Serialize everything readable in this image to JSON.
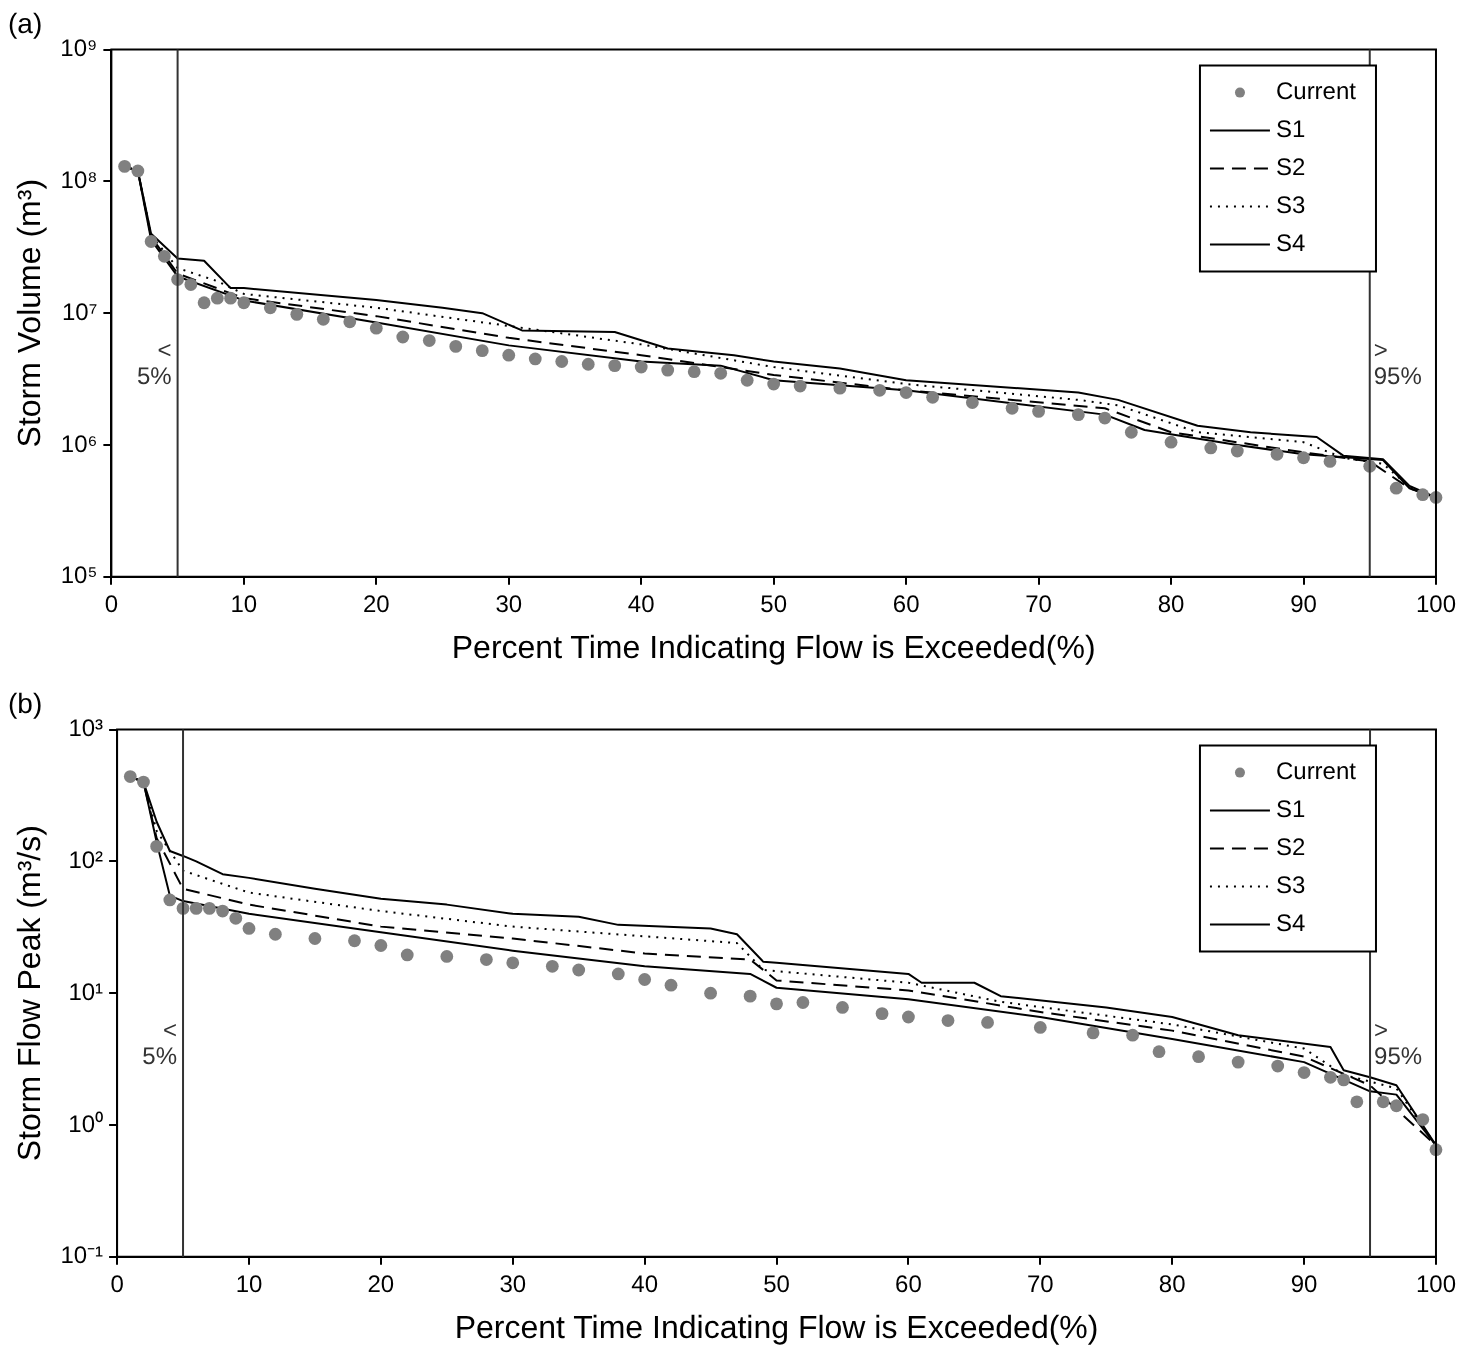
{
  "chart_data": [
    {
      "type": "line",
      "title": "(a)",
      "xlabel": "Percent Time Indicating Flow is Exceeded(%)",
      "ylabel": "Storm Volume (m³)",
      "xlim": [
        0,
        100
      ],
      "xticks": [
        0,
        10,
        20,
        30,
        40,
        50,
        60,
        70,
        80,
        90,
        100
      ],
      "ylim": [
        100000,
        1000000000
      ],
      "yticks": [
        {
          "value": 100000,
          "label": "10⁵"
        },
        {
          "value": 1000000,
          "label": "10⁶"
        },
        {
          "value": 10000000,
          "label": "10⁷"
        },
        {
          "value": 100000000,
          "label": "10⁸"
        },
        {
          "value": 1000000000,
          "label": "10⁹"
        }
      ],
      "log": "y",
      "grid": false,
      "legend": "top right",
      "ref_lines": [
        {
          "axis": "x",
          "value": 5,
          "label": "< 5%"
        },
        {
          "axis": "x",
          "value": 95,
          "label": "> 95%"
        }
      ],
      "series": [
        {
          "name": "Current",
          "type": "scatter",
          "marker": "circle",
          "color": "#808080",
          "x": [
            1,
            2,
            3,
            4,
            5,
            6,
            7,
            8,
            9,
            10,
            12,
            14,
            16,
            18,
            20,
            22,
            24,
            26,
            28,
            30,
            32,
            34,
            36,
            38,
            40,
            42,
            44,
            46,
            48,
            50,
            52,
            55,
            58,
            60,
            62,
            65,
            68,
            70,
            73,
            75,
            77,
            80,
            83,
            85,
            88,
            90,
            92,
            95,
            97,
            99,
            100
          ],
          "values": [
            130000000.0,
            120000000.0,
            35000000.0,
            27000000.0,
            18000000.0,
            16500000.0,
            12000000.0,
            13000000.0,
            13000000.0,
            12000000.0,
            11000000.0,
            9800000.0,
            9000000.0,
            8600000.0,
            7700000.0,
            6600000.0,
            6200000.0,
            5600000.0,
            5200000.0,
            4800000.0,
            4500000.0,
            4300000.0,
            4100000.0,
            4000000.0,
            3900000.0,
            3700000.0,
            3600000.0,
            3500000.0,
            3100000.0,
            2900000.0,
            2800000.0,
            2700000.0,
            2600000.0,
            2500000.0,
            2300000.0,
            2100000.0,
            1900000.0,
            1800000.0,
            1700000.0,
            1600000.0,
            1250000.0,
            1050000.0,
            950000.0,
            900000.0,
            850000.0,
            800000.0,
            750000.0,
            690000.0,
            470000.0,
            420000.0,
            400000.0
          ]
        },
        {
          "name": "S1",
          "type": "line",
          "marker": "none",
          "line_style": "solid",
          "color": "#000000",
          "x": [
            1,
            2,
            3,
            5,
            7,
            9,
            10,
            20,
            25,
            28,
            31,
            38,
            42,
            47,
            50,
            55,
            60,
            73,
            76,
            82,
            86,
            91,
            93,
            96,
            98,
            100
          ],
          "values": [
            130000000.0,
            120000000.0,
            40000000.0,
            26000000.0,
            25000000.0,
            15500000.0,
            15500000.0,
            12600000.0,
            11000000.0,
            10000000.0,
            7400000.0,
            7200000.0,
            5400000.0,
            4800000.0,
            4300000.0,
            3800000.0,
            3100000.0,
            2500000.0,
            2200000.0,
            1400000.0,
            1250000.0,
            1150000.0,
            830000.0,
            780000.0,
            490000.0,
            400000.0
          ]
        },
        {
          "name": "S2",
          "type": "line",
          "marker": "none",
          "line_style": "dashed",
          "color": "#000000",
          "x": [
            1,
            2,
            3,
            5,
            10,
            20,
            30,
            40,
            50,
            60,
            75,
            80,
            90,
            95,
            98,
            100
          ],
          "values": [
            130000000.0,
            120000000.0,
            38000000.0,
            20000000.0,
            13000000.0,
            9500000.0,
            6500000.0,
            4800000.0,
            3400000.0,
            2600000.0,
            1900000.0,
            1250000.0,
            880000.0,
            750000.0,
            470000.0,
            400000.0
          ]
        },
        {
          "name": "S3",
          "type": "line",
          "marker": "none",
          "line_style": "dotted",
          "color": "#000000",
          "x": [
            1,
            2,
            3,
            5,
            8,
            10,
            20,
            30,
            40,
            50,
            60,
            73,
            76,
            82,
            90,
            93,
            96,
            98,
            100
          ],
          "values": [
            130000000.0,
            120000000.0,
            39000000.0,
            22000000.0,
            17500000.0,
            14000000.0,
            11000000.0,
            8000000.0,
            5800000.0,
            3900000.0,
            2900000.0,
            2200000.0,
            2000000.0,
            1250000.0,
            1050000.0,
            800000.0,
            720000.0,
            480000.0,
            400000.0
          ]
        },
        {
          "name": "S4",
          "type": "line",
          "marker": "none",
          "line_style": "solid",
          "color": "#000000",
          "x": [
            1,
            2,
            3,
            5,
            10,
            20,
            30,
            40,
            46,
            50,
            60,
            75,
            78,
            85,
            90,
            96,
            98,
            100
          ],
          "values": [
            130000000.0,
            120000000.0,
            36000000.0,
            19000000.0,
            12500000.0,
            8500000.0,
            5700000.0,
            4300000.0,
            4000000.0,
            3100000.0,
            2600000.0,
            1700000.0,
            1300000.0,
            1000000.0,
            850000.0,
            770000.0,
            470000.0,
            400000.0
          ]
        }
      ]
    },
    {
      "type": "line",
      "title": "(b)",
      "xlabel": "Percent Time Indicating Flow is Exceeded(%)",
      "ylabel": "Storm Flow Peak (m³/s)",
      "xlim": [
        0,
        100
      ],
      "xticks": [
        0,
        10,
        20,
        30,
        40,
        50,
        60,
        70,
        80,
        90,
        100
      ],
      "ylim": [
        0.1,
        1000
      ],
      "yticks": [
        {
          "value": 0.1,
          "label": "10⁻¹"
        },
        {
          "value": 1,
          "label": "10⁰"
        },
        {
          "value": 10,
          "label": "10¹"
        },
        {
          "value": 100,
          "label": "10²"
        },
        {
          "value": 1000,
          "label": "10³"
        }
      ],
      "log": "y",
      "grid": false,
      "legend": "top right",
      "ref_lines": [
        {
          "axis": "x",
          "value": 5,
          "label": "< 5%"
        },
        {
          "axis": "x",
          "value": 95,
          "label": "> 95%"
        }
      ],
      "series": [
        {
          "name": "Current",
          "type": "scatter",
          "marker": "circle",
          "color": "#808080",
          "x": [
            1,
            2,
            3,
            4,
            5,
            6,
            7,
            8,
            9,
            10,
            12,
            15,
            18,
            20,
            22,
            25,
            28,
            30,
            33,
            35,
            38,
            40,
            42,
            45,
            48,
            50,
            52,
            55,
            58,
            60,
            63,
            66,
            70,
            74,
            77,
            79,
            82,
            85,
            88,
            90,
            92,
            93,
            94,
            96,
            97,
            99,
            100
          ],
          "values": [
            440,
            400,
            130,
            51,
            44,
            44,
            44,
            42,
            37,
            31,
            28,
            26,
            25,
            23,
            19.5,
            19,
            18,
            17,
            16,
            15,
            14,
            12.7,
            11.5,
            10,
            9.5,
            8.3,
            8.5,
            7.8,
            7,
            6.6,
            6.2,
            6,
            5.5,
            5,
            4.8,
            3.6,
            3.3,
            3,
            2.8,
            2.5,
            2.3,
            2.2,
            1.5,
            1.5,
            1.4,
            1.1,
            0.65
          ]
        },
        {
          "name": "S1",
          "type": "line",
          "marker": "none",
          "line_style": "solid",
          "color": "#000000",
          "x": [
            1,
            2,
            3,
            4,
            5,
            6,
            8,
            10,
            15,
            20,
            25,
            30,
            35,
            38,
            45,
            47,
            49,
            50,
            60,
            61,
            65,
            67,
            75,
            80,
            85,
            92,
            93,
            95,
            97,
            100
          ],
          "values": [
            440,
            400,
            200,
            120,
            110,
            100,
            80,
            75,
            62,
            52,
            47,
            40,
            38,
            33,
            31,
            28,
            17.3,
            17,
            14,
            12,
            12,
            9.5,
            7.8,
            6.6,
            4.8,
            3.9,
            2.6,
            2.3,
            2,
            0.7
          ]
        },
        {
          "name": "S2",
          "type": "line",
          "marker": "none",
          "line_style": "dashed",
          "color": "#000000",
          "x": [
            1,
            2,
            3,
            5,
            10,
            20,
            30,
            40,
            48,
            50,
            60,
            70,
            80,
            90,
            95,
            100
          ],
          "values": [
            440,
            400,
            150,
            62,
            47,
            32,
            26,
            20,
            18,
            12.5,
            10.5,
            7.2,
            5.2,
            3.3,
            2,
            0.7
          ]
        },
        {
          "name": "S3",
          "type": "line",
          "marker": "none",
          "line_style": "dotted",
          "color": "#000000",
          "x": [
            1,
            2,
            3,
            5,
            10,
            20,
            30,
            40,
            47,
            49,
            60,
            67,
            80,
            90,
            93,
            97,
            100
          ],
          "values": [
            440,
            400,
            170,
            85,
            58,
            42,
            32,
            27,
            24,
            15,
            12,
            8.6,
            5.8,
            3.8,
            2.4,
            1.9,
            0.7
          ]
        },
        {
          "name": "S4",
          "type": "line",
          "marker": "none",
          "line_style": "solid",
          "color": "#000000",
          "x": [
            1,
            2,
            3,
            4,
            5,
            10,
            20,
            30,
            40,
            48,
            50,
            60,
            70,
            80,
            90,
            95,
            97,
            100
          ],
          "values": [
            440,
            400,
            140,
            55,
            50,
            40,
            29,
            21,
            16,
            14,
            11,
            9,
            6.6,
            4.5,
            3,
            1.8,
            1.7,
            0.7
          ]
        }
      ]
    }
  ]
}
